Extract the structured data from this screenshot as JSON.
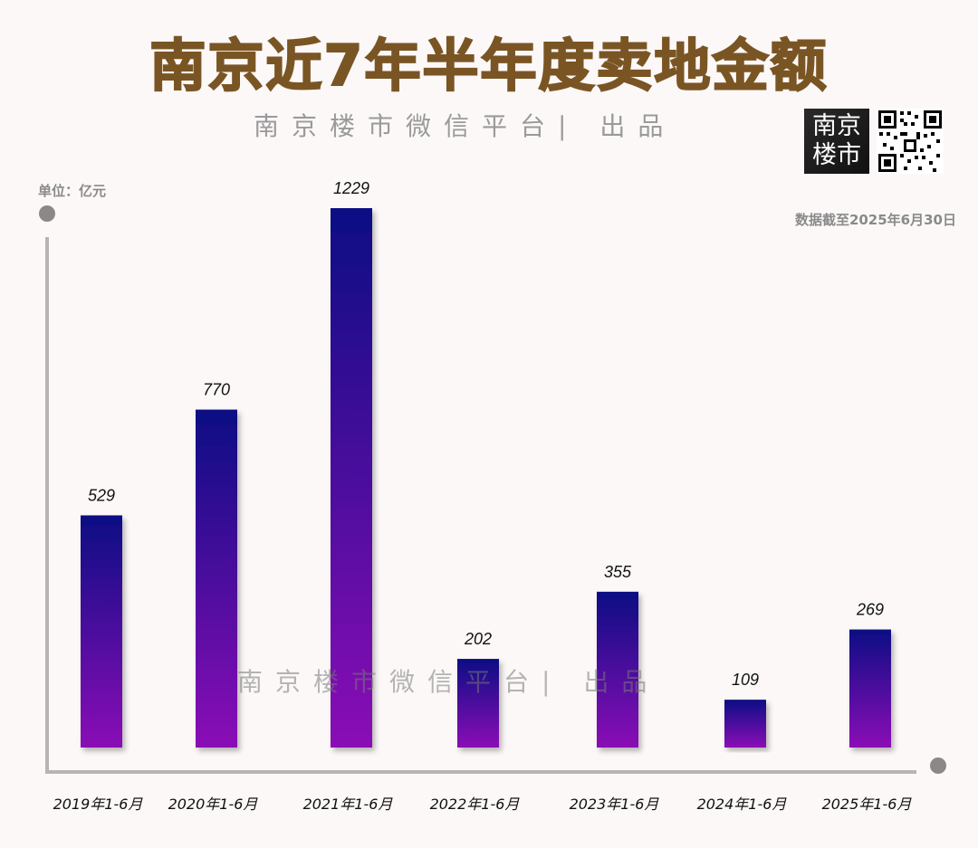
{
  "header": {
    "title": "南京近7年半年度卖地金额",
    "subtitle": "南京楼市微信平台| 出品",
    "watermark": "南京楼市微信平台| 出品",
    "logo_line1": "南京",
    "logo_line2": "楼市",
    "unit": "单位：亿元",
    "note": "数据截至2025年6月30日"
  },
  "colors": {
    "title": "#7a5524",
    "bar_top": "#0c0f84",
    "bar_bottom": "#8a11b6",
    "axis": "#b8b4b4",
    "text_muted": "#8a8a8a"
  },
  "chart_data": {
    "type": "bar",
    "categories": [
      "2019年1-6月",
      "2020年1-6月",
      "2021年1-6月",
      "2022年1-6月",
      "2023年1-6月",
      "2024年1-6月",
      "2025年1-6月"
    ],
    "values": [
      529,
      770,
      1229,
      202,
      355,
      109,
      269
    ],
    "title": "南京近7年半年度卖地金额",
    "ylabel": "单位：亿元",
    "ylim": [
      0,
      1300
    ],
    "grid": false,
    "legend": "none"
  }
}
